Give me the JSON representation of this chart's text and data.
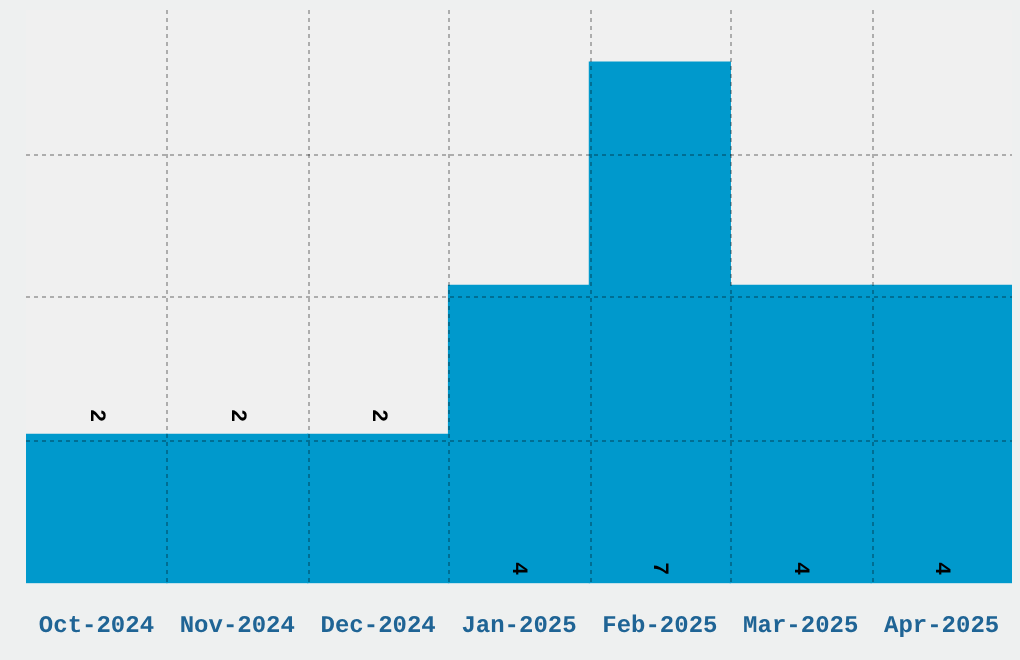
{
  "chart_data": {
    "type": "bar",
    "categories": [
      "Oct-2024",
      "Nov-2024",
      "Dec-2024",
      "Jan-2025",
      "Feb-2025",
      "Mar-2025",
      "Apr-2025"
    ],
    "values": [
      2,
      2,
      2,
      4,
      7,
      4,
      4
    ],
    "color": "#0099cc",
    "ylim": [
      0,
      7.7
    ],
    "grid": true,
    "tick_labels": "x",
    "data_labels": true,
    "legend": false
  }
}
